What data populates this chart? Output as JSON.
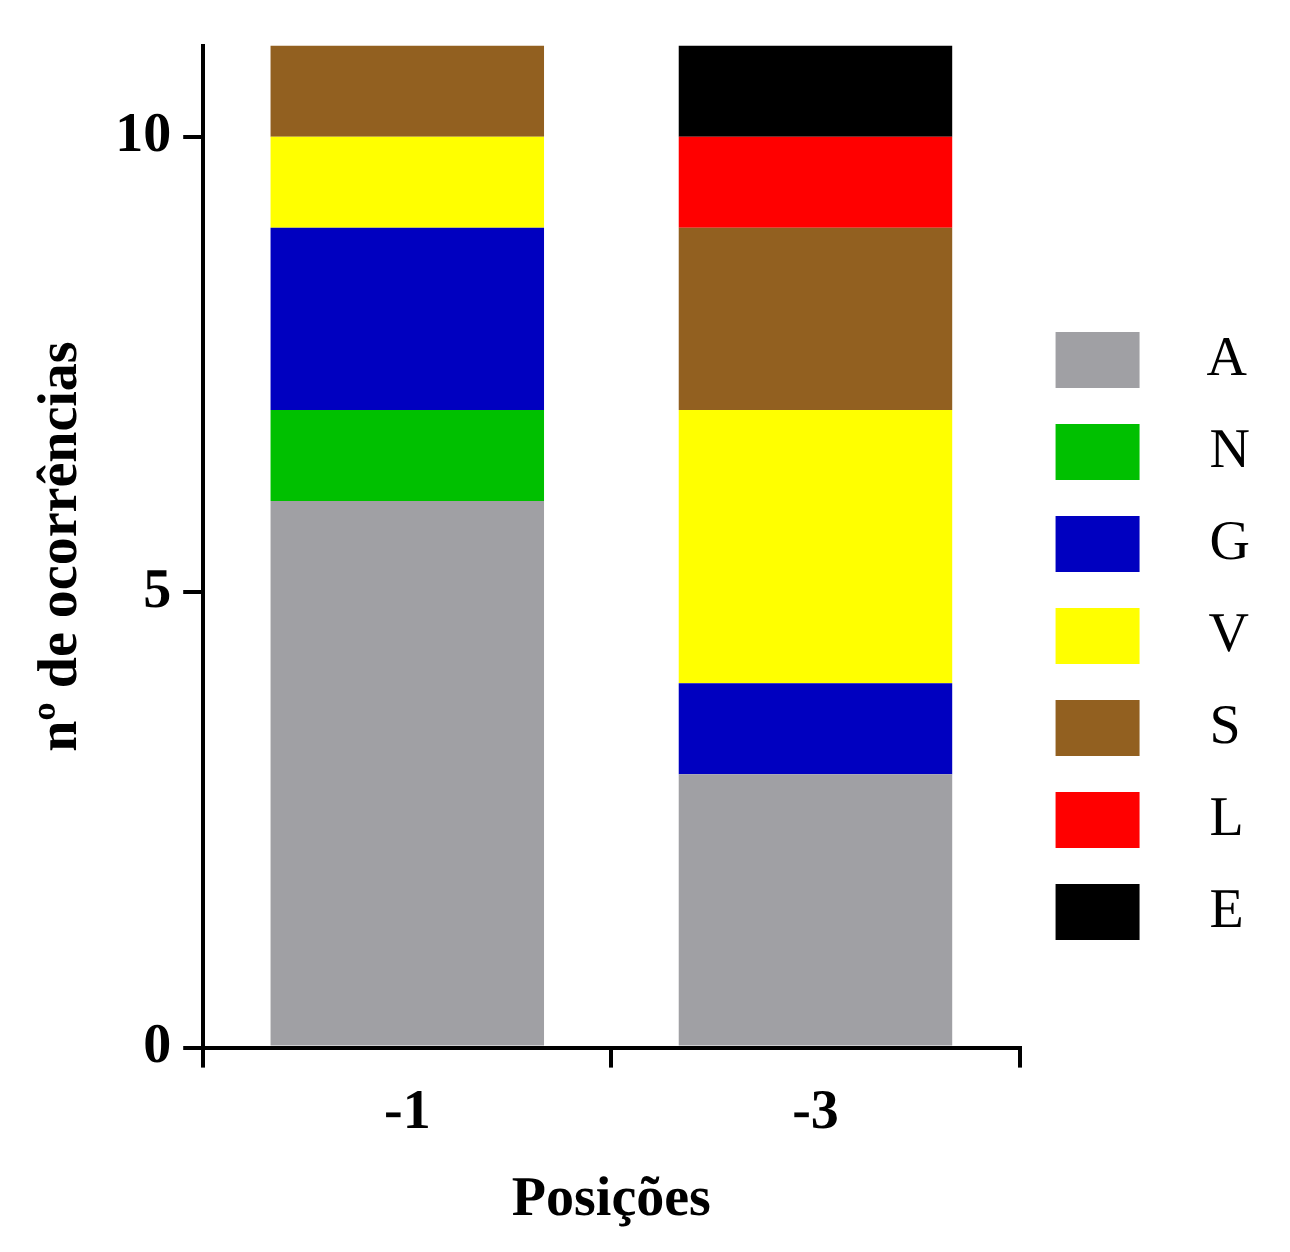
{
  "chart_data": {
    "type": "bar",
    "stacked": true,
    "xlabel": "Posições",
    "ylabel": "nº de ocorrências",
    "categories": [
      "-1",
      "-3"
    ],
    "series": [
      {
        "name": "A",
        "color": "#a0a0a4",
        "values": [
          6,
          3
        ]
      },
      {
        "name": "N",
        "color": "#00c000",
        "values": [
          1,
          0
        ]
      },
      {
        "name": "G",
        "color": "#0000c0",
        "values": [
          2,
          1
        ]
      },
      {
        "name": "V",
        "color": "#ffff00",
        "values": [
          1,
          3
        ]
      },
      {
        "name": "S",
        "color": "#926020",
        "values": [
          1,
          2
        ]
      },
      {
        "name": "L",
        "color": "#ff0000",
        "values": [
          0,
          1
        ]
      },
      {
        "name": "E",
        "color": "#000000",
        "values": [
          0,
          1
        ]
      }
    ],
    "ylim": [
      0,
      11
    ],
    "yticks": [
      0,
      5,
      10
    ],
    "grid": false,
    "legend": "right"
  }
}
